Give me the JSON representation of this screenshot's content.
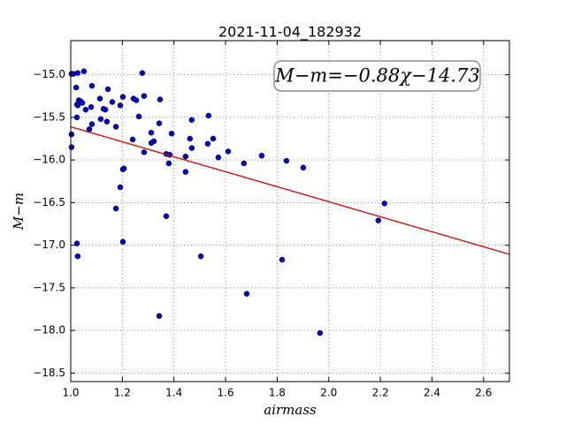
{
  "chart_data": {
    "type": "scatter",
    "title": "2021-11-04_182932",
    "x_label": "airmass",
    "y_label": "M−m",
    "annotation": "M−m=−0.88χ−14.73",
    "xlim": [
      1.0,
      2.7
    ],
    "ylim": [
      -18.6,
      -14.6
    ],
    "xticks": [
      {
        "value": 1.0,
        "label": "1.0"
      },
      {
        "value": 1.2,
        "label": "1.2"
      },
      {
        "value": 1.4,
        "label": "1.4"
      },
      {
        "value": 1.6,
        "label": "1.6"
      },
      {
        "value": 1.8,
        "label": "1.8"
      },
      {
        "value": 2.0,
        "label": "2.0"
      },
      {
        "value": 2.2,
        "label": "2.2"
      },
      {
        "value": 2.4,
        "label": "2.4"
      },
      {
        "value": 2.6,
        "label": "2.6"
      }
    ],
    "yticks": [
      {
        "value": -15.0,
        "label": "−15.0"
      },
      {
        "value": -15.5,
        "label": "−15.5"
      },
      {
        "value": -16.0,
        "label": "−16.0"
      },
      {
        "value": -16.5,
        "label": "−16.5"
      },
      {
        "value": -17.0,
        "label": "−17.0"
      },
      {
        "value": -17.5,
        "label": "−17.5"
      },
      {
        "value": -18.0,
        "label": "−18.0"
      },
      {
        "value": -18.5,
        "label": "−18.5"
      }
    ],
    "grid": true,
    "series": [
      {
        "color": "#0000cc",
        "x": [
          1.003,
          1.01,
          1.027,
          1.051,
          1.003,
          1.003,
          1.021,
          1.024,
          1.027,
          1.031,
          1.024,
          1.038,
          1.045,
          1.058,
          1.079,
          1.072,
          1.082,
          1.082,
          1.113,
          1.116,
          1.134,
          1.127,
          1.144,
          1.14,
          1.161,
          1.175,
          1.192,
          1.202,
          1.202,
          1.192,
          1.206,
          1.175,
          1.202,
          1.24,
          1.243,
          1.254,
          1.264,
          1.277,
          1.284,
          1.284,
          1.312,
          1.312,
          1.322,
          1.346,
          1.343,
          1.37,
          1.384,
          1.38,
          1.391,
          1.37,
          1.024,
          1.027,
          1.343,
          1.445,
          1.469,
          1.445,
          1.462,
          1.469,
          1.534,
          1.531,
          1.552,
          1.572,
          1.61,
          1.504,
          1.671,
          1.74,
          1.682,
          1.836,
          1.819,
          1.901,
          1.966,
          2.192,
          2.216
        ],
        "values": [
          -14.99,
          -14.99,
          -14.98,
          -14.96,
          -15.7,
          -15.85,
          -15.15,
          -15.5,
          -15.36,
          -15.3,
          -15.35,
          -15.31,
          -15.33,
          -15.41,
          -15.38,
          -15.64,
          -15.13,
          -15.58,
          -15.28,
          -15.52,
          -15.41,
          -15.4,
          -15.17,
          -15.55,
          -15.32,
          -15.61,
          -15.36,
          -15.26,
          -16.11,
          -16.32,
          -16.1,
          -16.57,
          -16.96,
          -15.76,
          -15.28,
          -15.3,
          -15.49,
          -14.98,
          -15.25,
          -15.91,
          -15.68,
          -15.8,
          -15.78,
          -15.29,
          -15.57,
          -15.93,
          -15.94,
          -16.04,
          -15.69,
          -16.66,
          -16.98,
          -17.13,
          -17.83,
          -15.96,
          -15.53,
          -16.14,
          -15.75,
          -15.86,
          -15.48,
          -15.81,
          -15.75,
          -15.97,
          -15.9,
          -17.13,
          -16.04,
          -15.95,
          -17.57,
          -16.01,
          -17.17,
          -16.09,
          -18.03,
          -16.71,
          -16.51
        ]
      },
      {
        "type": "line",
        "color": "#dd0000",
        "x": [
          1.0,
          2.7
        ],
        "values": [
          -15.61,
          -17.106
        ]
      }
    ]
  }
}
